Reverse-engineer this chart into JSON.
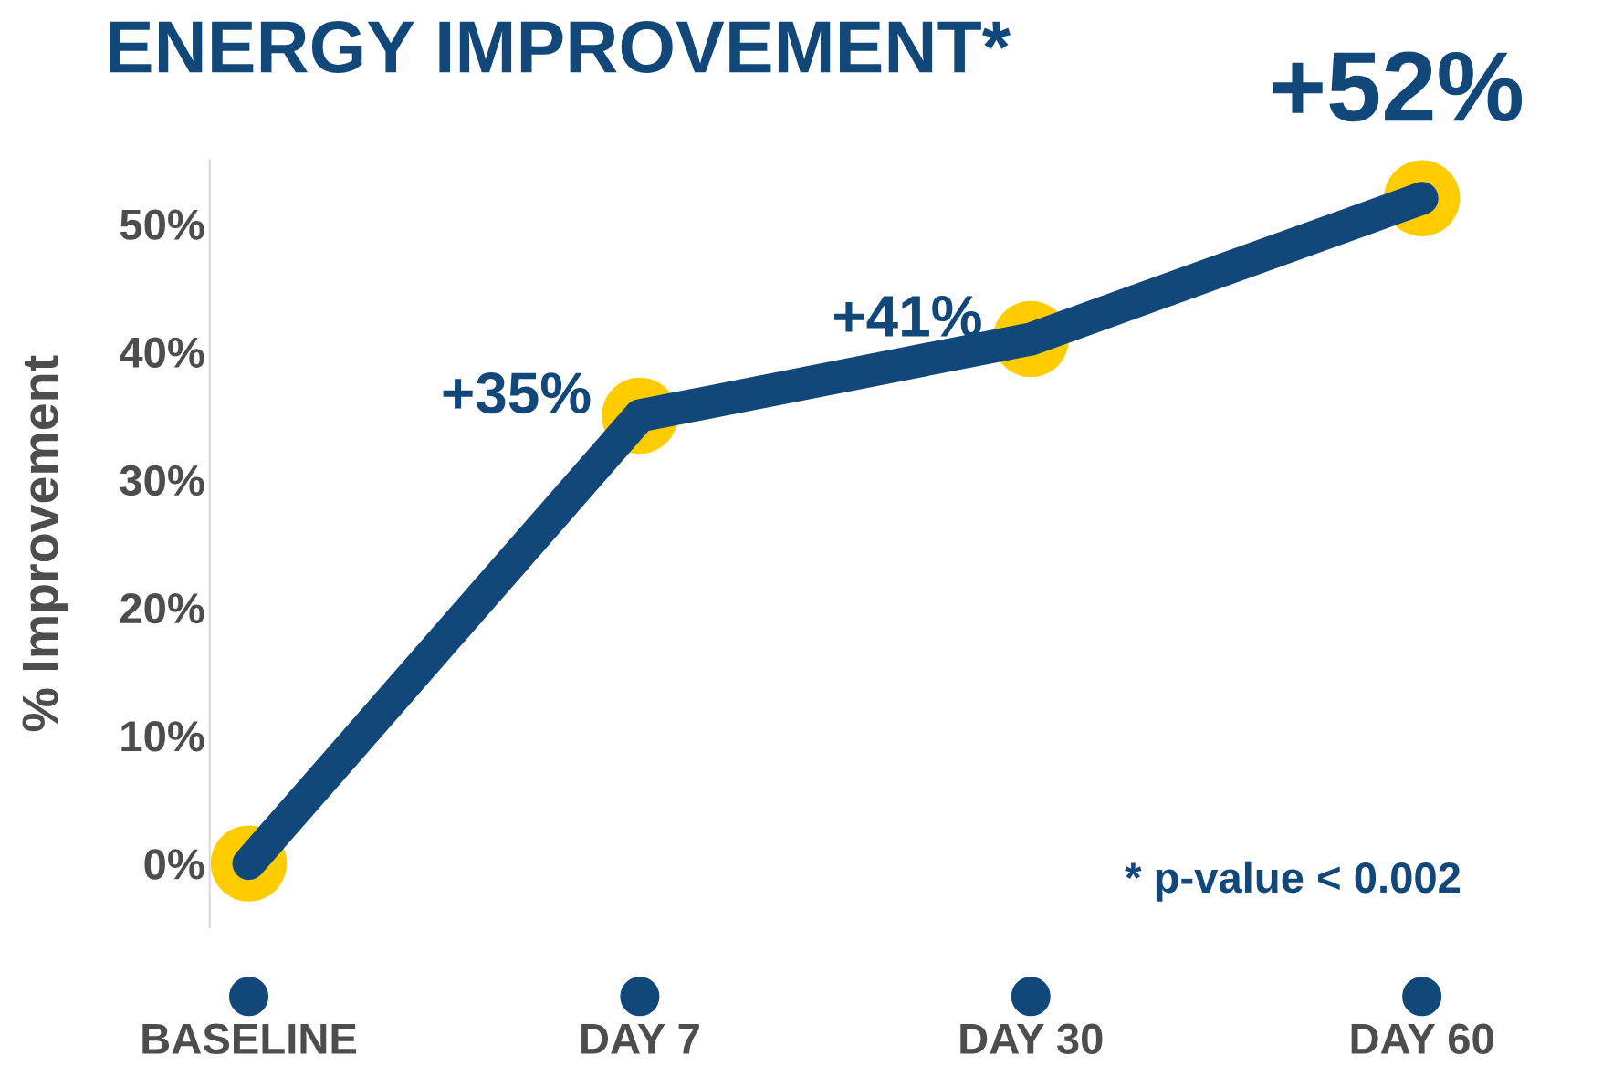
{
  "chart_data": {
    "type": "line",
    "title": "ENERGY IMPROVEMENT*",
    "ylabel": "% Improvement",
    "categories": [
      "BASELINE",
      "DAY 7",
      "DAY 30",
      "DAY 60"
    ],
    "series": [
      {
        "color": "#12477a",
        "values": [
          0,
          35,
          41,
          52
        ],
        "value_labels": [
          null,
          "+35%",
          "+41%",
          "+52%"
        ]
      },
      {
        "type": "scatter",
        "marker": "circle",
        "color": "#ffcc00",
        "values": [
          0,
          35,
          41,
          52
        ]
      }
    ],
    "line_style": "solid",
    "grid": false,
    "ylim": [
      -5,
      55
    ],
    "yticks": [
      {
        "value": 0,
        "label": "0%"
      },
      {
        "value": 10,
        "label": "10%"
      },
      {
        "value": 20,
        "label": "20%"
      },
      {
        "value": 30,
        "label": "30%"
      },
      {
        "value": 40,
        "label": "40%"
      },
      {
        "value": 50,
        "label": "50%"
      }
    ],
    "annotations": [
      "* p-value < 0.002"
    ]
  }
}
